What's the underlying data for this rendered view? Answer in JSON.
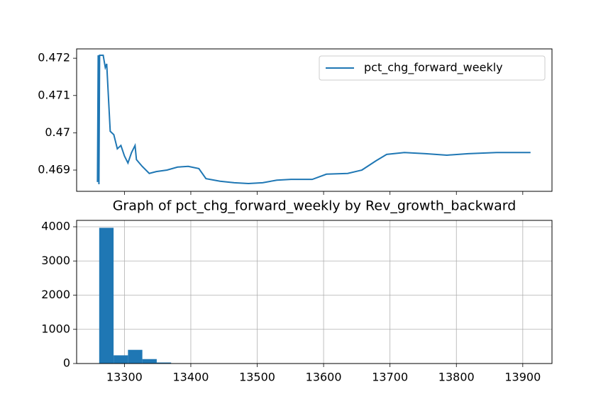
{
  "chart_data": [
    {
      "type": "line",
      "legend": "upper right",
      "x": [
        13259.4,
        13260.5,
        13261.6,
        13262.6,
        13268,
        13271.2,
        13273.3,
        13275.4,
        13278.6,
        13284,
        13289.3,
        13294.7,
        13300,
        13305.3,
        13310.7,
        13316,
        13318.1,
        13326.7,
        13337.4,
        13348,
        13364.1,
        13380.1,
        13396.1,
        13412.1,
        13422.8,
        13444.1,
        13465.5,
        13486.8,
        13508.2,
        13529.5,
        13550.9,
        13582.9,
        13604.3,
        13636.3,
        13657.6,
        13679,
        13695,
        13721.7,
        13753.7,
        13785.7,
        13817.8,
        13860.5,
        13911.7
      ],
      "series": [
        {
          "name": "pct_chg_forward_weekly",
          "color": "#1f77b4",
          "values": [
            0.46868,
            0.47208,
            0.46862,
            0.47208,
            0.47208,
            0.47175,
            0.47185,
            0.47113,
            0.47004,
            0.46995,
            0.46957,
            0.46966,
            0.46938,
            0.46919,
            0.46947,
            0.46966,
            0.46928,
            0.4691,
            0.46891,
            0.46896,
            0.469,
            0.46908,
            0.4691,
            0.46904,
            0.46877,
            0.4687,
            0.46866,
            0.46864,
            0.46866,
            0.46873,
            0.46875,
            0.46875,
            0.46889,
            0.46891,
            0.469,
            0.46925,
            0.46942,
            0.46947,
            0.46944,
            0.4694,
            0.46944,
            0.46947,
            0.46947
          ]
        }
      ],
      "xlim": [
        13228,
        13944
      ],
      "ylim": [
        0.46843,
        0.47225
      ],
      "yticks": [
        0.469,
        0.47,
        0.471,
        0.472
      ]
    },
    {
      "type": "histogram",
      "title": "Graph of pct_chg_forward_weekly by Rev_growth_backward",
      "color": "#1f77b4",
      "grid": true,
      "bins": [
        13262,
        13283.67,
        13305.33,
        13327,
        13348.67,
        13370.33,
        13392,
        13413.67,
        13435.33,
        13457,
        13478.67,
        13500.33,
        13522,
        13543.67,
        13565.33,
        13587,
        13608.67,
        13630.33,
        13652,
        13673.67,
        13695.33,
        13717,
        13738.67,
        13760.33,
        13782,
        13803.67,
        13825.33,
        13847,
        13868.67,
        13890.33,
        13912
      ],
      "values": [
        3970,
        240,
        400,
        130,
        30,
        10,
        0,
        0,
        0,
        0,
        0,
        0,
        0,
        0,
        0,
        0,
        0,
        0,
        0,
        0,
        0,
        0,
        0,
        0,
        0,
        0,
        0,
        0,
        0,
        0
      ],
      "xlim": [
        13228,
        13944
      ],
      "ylim": [
        0,
        4187
      ],
      "xticks": [
        13300,
        13400,
        13500,
        13600,
        13700,
        13800,
        13900
      ],
      "yticks": [
        0,
        1000,
        2000,
        3000,
        4000
      ]
    }
  ]
}
